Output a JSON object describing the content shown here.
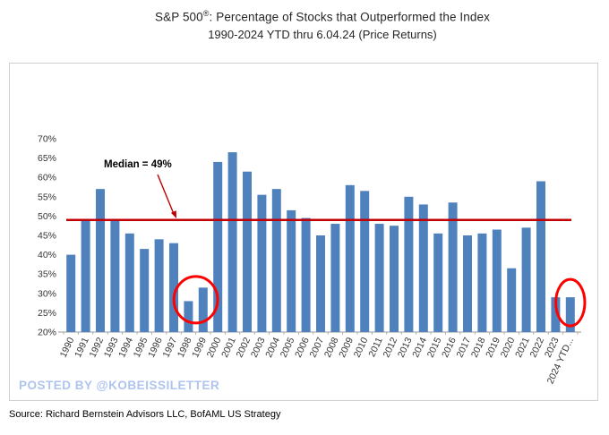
{
  "title": {
    "prefix": "S&P 500",
    "registered_mark": "®",
    "rest": ":  Percentage of Stocks that Outperformed the Index",
    "line2": "1990-2024 YTD thru 6.04.24  (Price Returns)"
  },
  "chart_data": {
    "type": "bar",
    "title": "S&P 500®: Percentage of Stocks that Outperformed the Index",
    "subtitle": "1990-2024 YTD thru 6.04.24 (Price Returns)",
    "categories": [
      "1990",
      "1991",
      "1992",
      "1993",
      "1994",
      "1995",
      "1996",
      "1997",
      "1998",
      "1999",
      "2000",
      "2001",
      "2002",
      "2003",
      "2004",
      "2005",
      "2006",
      "2007",
      "2008",
      "2009",
      "2010",
      "2011",
      "2012",
      "2013",
      "2014",
      "2015",
      "2016",
      "2017",
      "2018",
      "2019",
      "2020",
      "2021",
      "2022",
      "2023",
      "2024 YTD..."
    ],
    "values": [
      40,
      49,
      57,
      49,
      45.5,
      41.5,
      44,
      43,
      28,
      31.5,
      64,
      66.5,
      61.5,
      55.5,
      57,
      51.5,
      49.5,
      45,
      48,
      58,
      56.5,
      48,
      47.5,
      55,
      53,
      45.5,
      53.5,
      45,
      45.5,
      46.5,
      36.5,
      47,
      59,
      29,
      29
    ],
    "xlabel": "",
    "ylabel": "",
    "ylim": [
      20,
      70
    ],
    "ytick_step": 5,
    "ytick_suffix": "%",
    "grid": false,
    "legend": "none",
    "bar_color": "#4F81BD",
    "axis_color": "#9a9a9a",
    "tick_label_color": "#333333",
    "median_line": {
      "value": 49,
      "color": "#C00000",
      "label": "Median = 49%"
    },
    "highlight_circles": [
      {
        "categories": [
          "1998",
          "1999"
        ],
        "color": "#FF0000"
      },
      {
        "categories": [
          "2024 YTD..."
        ],
        "color": "#FF0000"
      }
    ]
  },
  "watermark": "POSTED BY @KOBEISSILETTER",
  "source": "Source: Richard Bernstein Advisors LLC, BofAML US Strategy"
}
